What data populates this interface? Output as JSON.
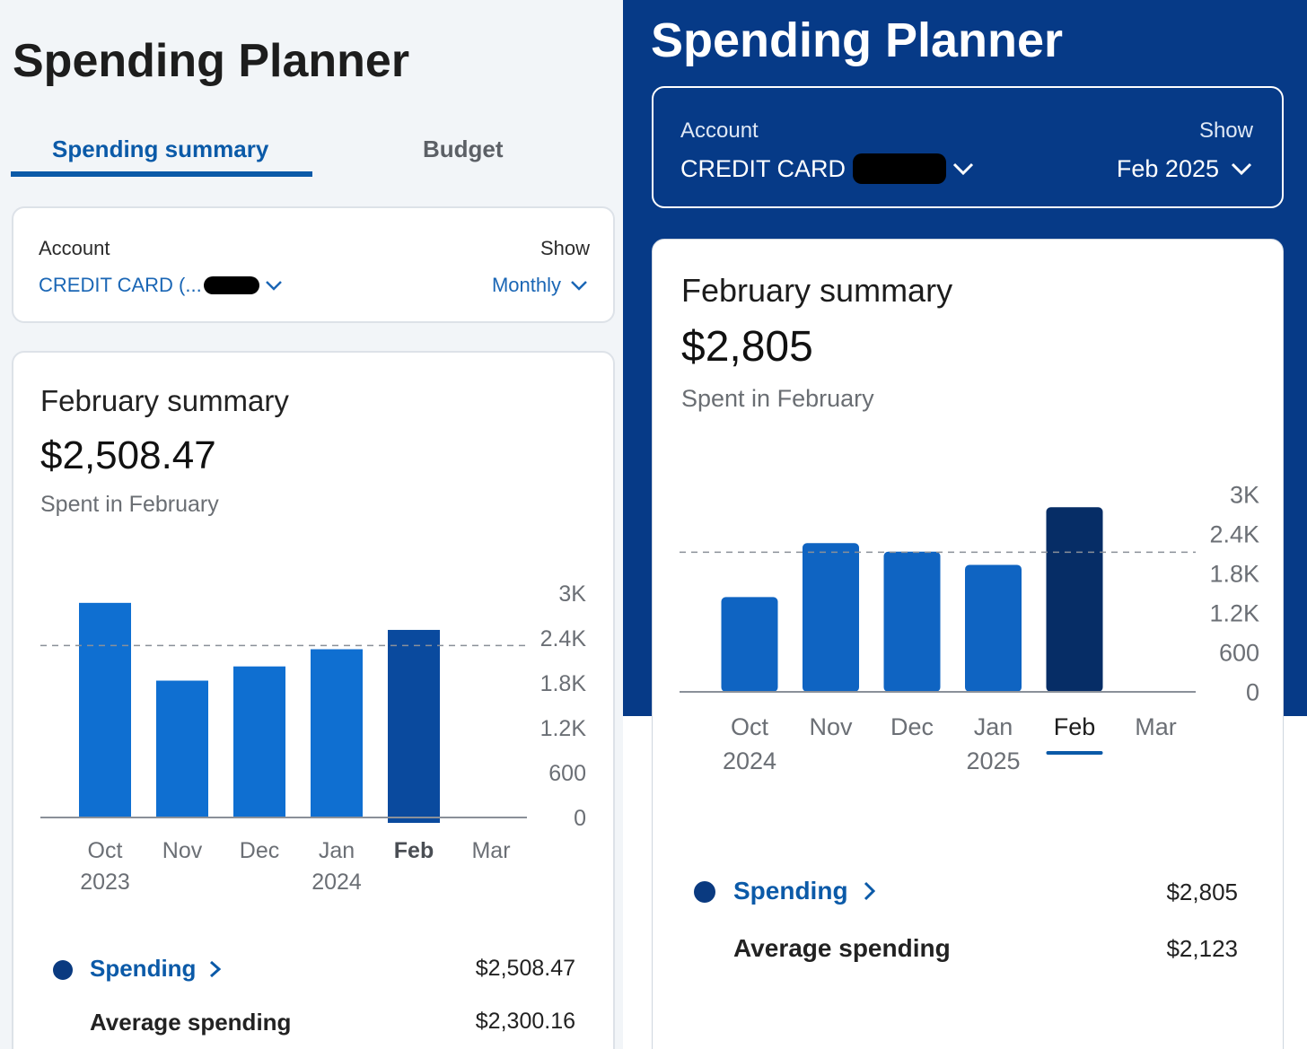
{
  "left": {
    "title": "Spending Planner",
    "tabs": [
      {
        "label": "Spending summary",
        "active": true
      },
      {
        "label": "Budget",
        "active": false
      }
    ],
    "account": {
      "label": "Account",
      "value": "CREDIT CARD (..."
    },
    "show": {
      "label": "Show",
      "value": "Monthly"
    },
    "summary": {
      "title": "February summary",
      "amount": "$2,508.47",
      "subtitle": "Spent in February"
    },
    "legend": {
      "spending_label": "Spending",
      "spending_value": "$2,508.47",
      "average_label": "Average spending",
      "average_value": "$2,300.16"
    }
  },
  "right": {
    "title": "Spending Planner",
    "account": {
      "label": "Account",
      "value": "CREDIT CARD"
    },
    "show": {
      "label": "Show",
      "value": "Feb 2025"
    },
    "summary": {
      "title": "February summary",
      "amount": "$2,805",
      "subtitle": "Spent in February"
    },
    "legend": {
      "spending_label": "Spending",
      "spending_value": "$2,805",
      "average_label": "Average spending",
      "average_value": "$2,123"
    }
  },
  "colors": {
    "primary_blue": "#0b5aa8",
    "bar_blue": "#0f6fd1",
    "bar_selected_dark": "#0a4a9e",
    "bar_selected_navy": "#062d66",
    "header_navy": "#063a87"
  },
  "chart_data": [
    {
      "type": "bar",
      "categories": [
        "Oct",
        "Nov",
        "Dec",
        "Jan",
        "Feb",
        "Mar"
      ],
      "category_years": [
        "2023",
        "",
        "",
        "2024",
        "",
        ""
      ],
      "values": [
        2870,
        1830,
        2020,
        2250,
        2508.47,
        null
      ],
      "average": 2300.16,
      "selected": "Feb",
      "yticks": [
        "3K",
        "2.4K",
        "1.8K",
        "1.2K",
        "600",
        "0"
      ],
      "ylim": [
        0,
        3000
      ]
    },
    {
      "type": "bar",
      "categories": [
        "Oct",
        "Nov",
        "Dec",
        "Jan",
        "Feb",
        "Mar"
      ],
      "category_years": [
        "2024",
        "",
        "",
        "2025",
        "",
        ""
      ],
      "values": [
        1440,
        2260,
        2130,
        1930,
        2805,
        null
      ],
      "average": 2123,
      "selected": "Feb",
      "yticks": [
        "3K",
        "2.4K",
        "1.8K",
        "1.2K",
        "600",
        "0"
      ],
      "ylim": [
        0,
        3000
      ]
    }
  ]
}
